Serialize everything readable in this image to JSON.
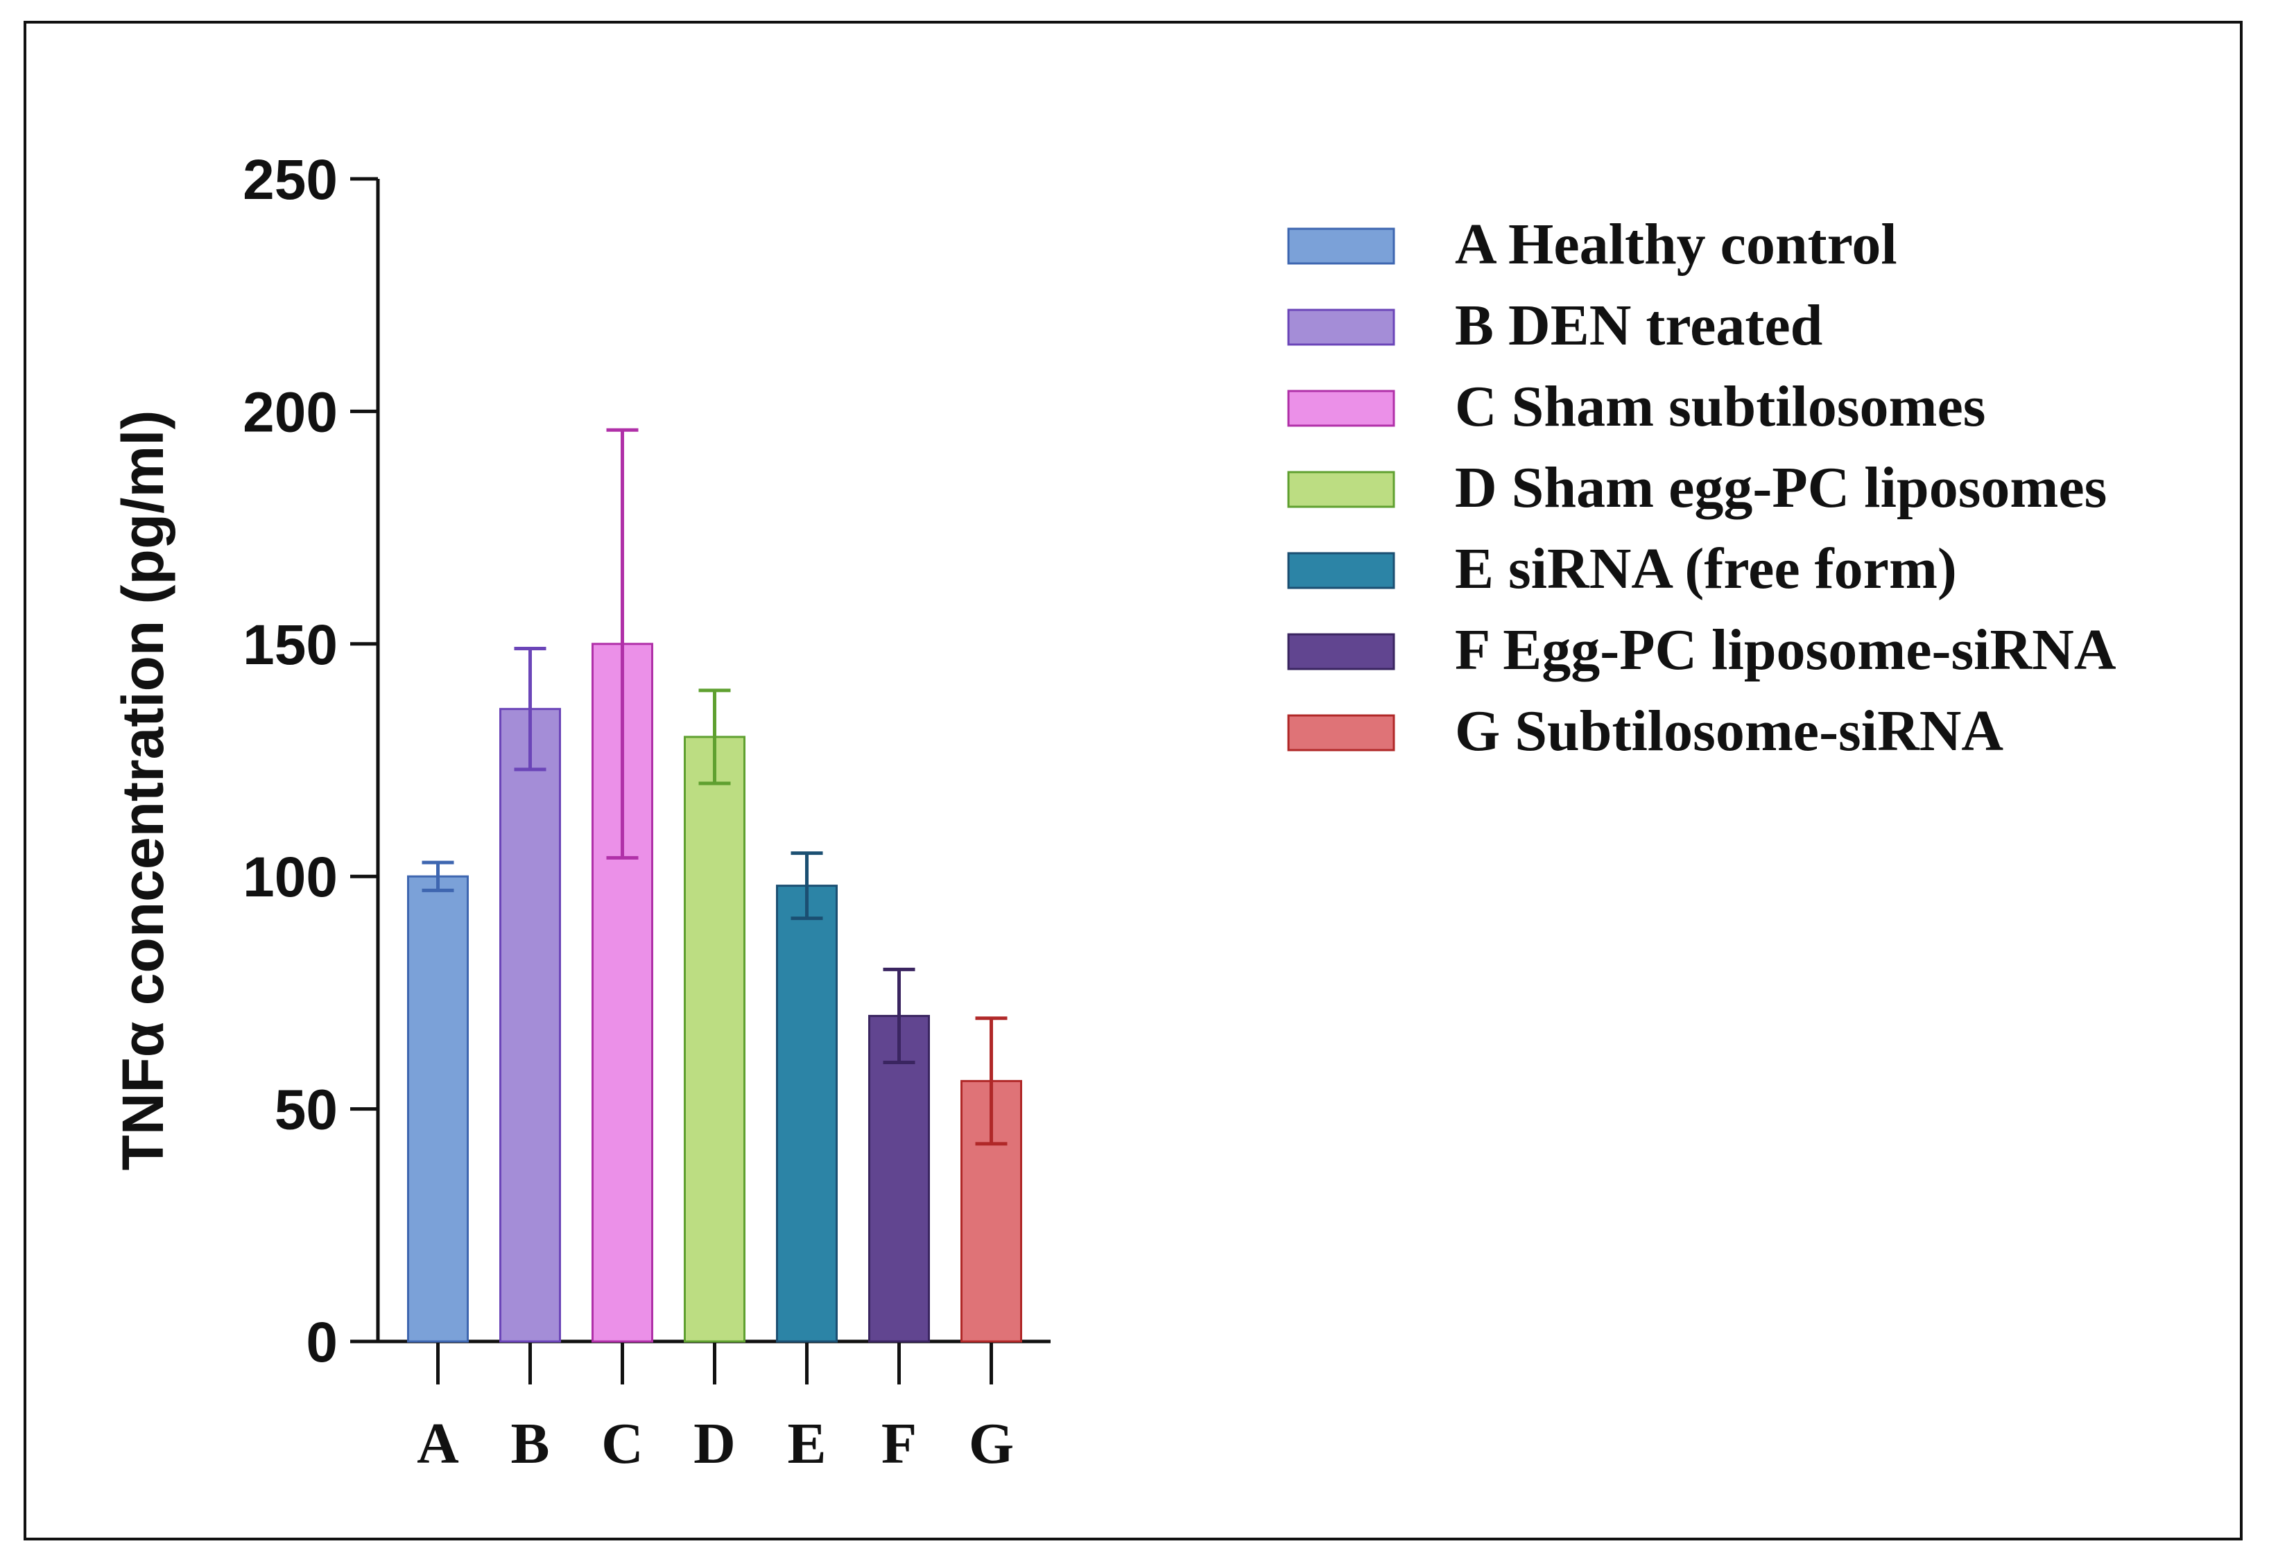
{
  "chart_data": {
    "type": "bar",
    "title": "",
    "xlabel": "",
    "ylabel": "TNFα concentration (pg/ml)",
    "ylim": [
      0,
      250
    ],
    "yticks": [
      0,
      50,
      100,
      150,
      200,
      250
    ],
    "grid": false,
    "legend_position": "top-right",
    "categories": [
      "A",
      "B",
      "C",
      "D",
      "E",
      "F",
      "G"
    ],
    "values": [
      100,
      136,
      150,
      130,
      98,
      70,
      56
    ],
    "errors": [
      3,
      13,
      46,
      10,
      7,
      10,
      13.5
    ],
    "colors": [
      "#7BA1D8",
      "#A48DD7",
      "#EB90E8",
      "#BCDD82",
      "#2C84A6",
      "#614590",
      "#DF7377"
    ],
    "edge_colors": [
      "#3E66B0",
      "#6B45B8",
      "#B030A8",
      "#5FA030",
      "#1B4F72",
      "#3A2560",
      "#B02828"
    ],
    "legend": [
      "A Healthy control",
      "B DEN treated",
      "C Sham subtilosomes",
      "D Sham egg-PC liposomes",
      "E siRNA (free form)",
      "F Egg-PC liposome-siRNA",
      "G Subtilosome-siRNA"
    ]
  }
}
